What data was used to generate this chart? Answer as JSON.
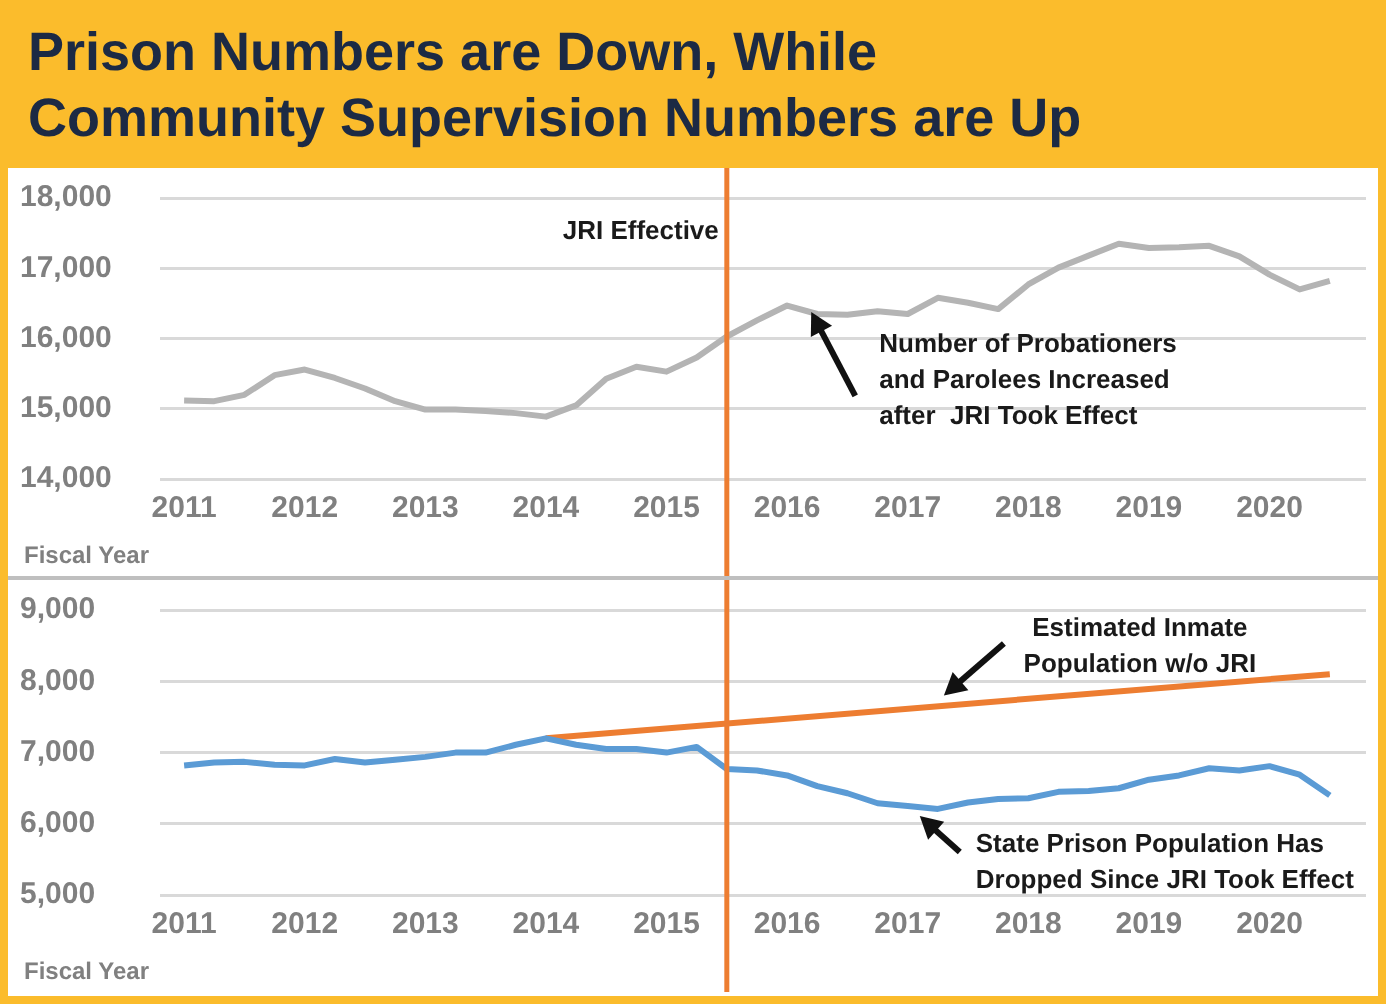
{
  "chart_data": [
    {
      "type": "line",
      "title": "Prison Numbers are Down, While\nCommunity Supervision Numbers are Up",
      "xlabel": "Fiscal Year",
      "x": [
        2011,
        2011.25,
        2011.5,
        2011.75,
        2012,
        2012.25,
        2012.5,
        2012.75,
        2013,
        2013.25,
        2013.5,
        2013.75,
        2014,
        2014.25,
        2014.5,
        2014.75,
        2015,
        2015.25,
        2015.5,
        2015.75,
        2016,
        2016.25,
        2016.5,
        2016.75,
        2017,
        2017.25,
        2017.5,
        2017.75,
        2018,
        2018.25,
        2018.5,
        2018.75,
        2019,
        2019.25,
        2019.5,
        2019.75,
        2020,
        2020.25,
        2020.5
      ],
      "series": [
        {
          "color": "#b4b4b4",
          "values": [
            15120,
            15110,
            15200,
            15480,
            15560,
            15440,
            15290,
            15110,
            14990,
            14990,
            14970,
            14940,
            14890,
            15050,
            15430,
            15600,
            15530,
            15730,
            16030,
            16260,
            16470,
            16350,
            16340,
            16390,
            16350,
            16580,
            16510,
            16420,
            16770,
            17010,
            17180,
            17350,
            17290,
            17300,
            17320,
            17170,
            16910,
            16700,
            16820
          ]
        }
      ],
      "xlim": [
        2010.8,
        2020.8
      ],
      "xticks": [
        2011,
        2012,
        2013,
        2014,
        2015,
        2016,
        2017,
        2018,
        2019,
        2020
      ],
      "ylim": [
        14000,
        18000
      ],
      "yticks": [
        {
          "value": 14000,
          "label": "14,000"
        },
        {
          "value": 15000,
          "label": "15,000"
        },
        {
          "value": 16000,
          "label": "16,000"
        },
        {
          "value": 17000,
          "label": "17,000"
        },
        {
          "value": 18000,
          "label": "18,000"
        }
      ],
      "grid": "y",
      "ref_lines": [
        {
          "axis": "x",
          "value": 2015.5,
          "label": "JRI Effective",
          "color": "#ed7d31"
        }
      ],
      "annotations": [
        {
          "text": "Number of Probationers\nand Parolees Increased\nafter  JRI Took Effect",
          "x": 2016.2,
          "y": 16380
        }
      ]
    },
    {
      "type": "line",
      "xlabel": "Fiscal Year",
      "x": [
        2011,
        2011.25,
        2011.5,
        2011.75,
        2012,
        2012.25,
        2012.5,
        2012.75,
        2013,
        2013.25,
        2013.5,
        2013.75,
        2014,
        2014.25,
        2014.5,
        2014.75,
        2015,
        2015.25,
        2015.5,
        2015.75,
        2016,
        2016.25,
        2016.5,
        2016.75,
        2017,
        2017.25,
        2017.5,
        2017.75,
        2018,
        2018.25,
        2018.5,
        2018.75,
        2019,
        2019.25,
        2019.5,
        2019.75,
        2020,
        2020.25,
        2020.5
      ],
      "series": [
        {
          "color": "#5b9bd5",
          "values": [
            6820,
            6860,
            6870,
            6830,
            6820,
            6910,
            6860,
            6900,
            6940,
            7000,
            7000,
            7110,
            7200,
            7110,
            7050,
            7050,
            7000,
            7080,
            6770,
            6750,
            6680,
            6530,
            6430,
            6290,
            6250,
            6210,
            6300,
            6350,
            6360,
            6450,
            6460,
            6500,
            6620,
            6680,
            6780,
            6750,
            6810,
            6690,
            6400
          ]
        },
        {
          "color": "#ed7d31",
          "x": [
            2014,
            2020.5
          ],
          "values": [
            7200,
            8100
          ]
        }
      ],
      "xlim": [
        2010.8,
        2020.8
      ],
      "xticks": [
        2011,
        2012,
        2013,
        2014,
        2015,
        2016,
        2017,
        2018,
        2019,
        2020
      ],
      "ylim": [
        5000,
        9000
      ],
      "yticks": [
        {
          "value": 5000,
          "label": "5,000"
        },
        {
          "value": 6000,
          "label": "6,000"
        },
        {
          "value": 7000,
          "label": "7,000"
        },
        {
          "value": 8000,
          "label": "8,000"
        },
        {
          "value": 9000,
          "label": "9,000"
        }
      ],
      "grid": "y",
      "ref_lines": [
        {
          "axis": "x",
          "value": 2015.5,
          "color": "#ed7d31"
        }
      ],
      "annotations": [
        {
          "text": "Estimated Inmate\nPopulation w/o JRI",
          "x": 2017.3,
          "y": 7800
        },
        {
          "text": "State Prison Population Has\nDropped Since JRI Took Effect",
          "x": 2017.1,
          "y": 6110
        }
      ]
    }
  ]
}
